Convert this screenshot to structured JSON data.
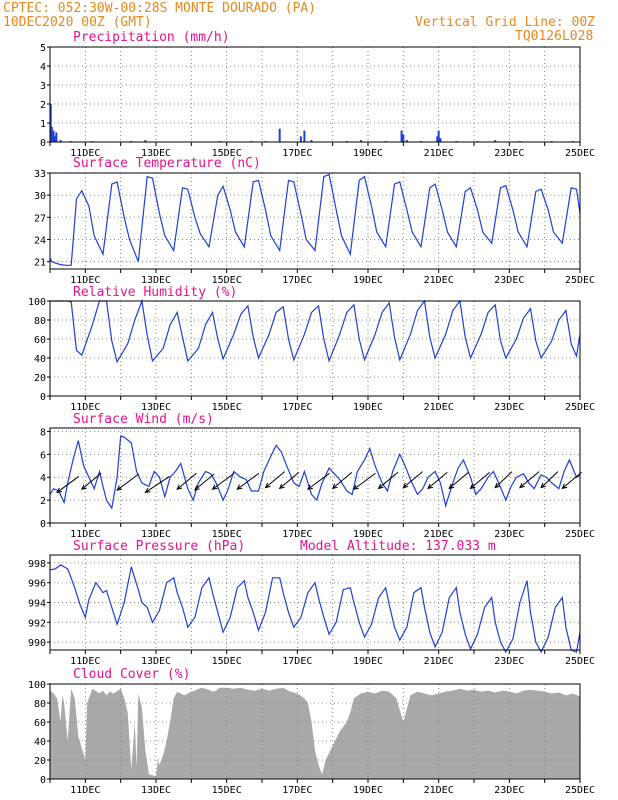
{
  "header": {
    "left_line1": "CPTEC:   052:30W-00:28S  MONTE DOURADO (PA)",
    "left_line2": "10DEC2020 00Z (GMT)",
    "right_line1": "Vertical Grid Line: 00Z",
    "right_line2": "TQ0126L028"
  },
  "colors": {
    "header": "#e8891e",
    "title": "#e5138c",
    "series": "#1f3fd8",
    "cloud": "#a9a9a9",
    "wind_arrow": "#000000",
    "grid": "#888888"
  },
  "chart_data": [
    {
      "id": "precip",
      "type": "bar",
      "title": "Precipitation (mm/h)",
      "xlabels": [
        "11DEC",
        "13DEC",
        "15DEC",
        "17DEC",
        "19DEC",
        "21DEC",
        "23DEC",
        "25DEC"
      ],
      "yticks": [
        0,
        1,
        2,
        3,
        4,
        5
      ],
      "ylim": [
        0,
        5
      ],
      "grid": true,
      "days_span": [
        10,
        25
      ],
      "bars": [
        {
          "x": 10.02,
          "y": 2.0
        },
        {
          "x": 10.05,
          "y": 0.8
        },
        {
          "x": 10.1,
          "y": 0.6
        },
        {
          "x": 10.14,
          "y": 0.3
        },
        {
          "x": 10.18,
          "y": 0.5
        },
        {
          "x": 10.3,
          "y": 0.1
        },
        {
          "x": 10.6,
          "y": 0.05
        },
        {
          "x": 11.2,
          "y": 0.05
        },
        {
          "x": 12.3,
          "y": 0.05
        },
        {
          "x": 12.7,
          "y": 0.1
        },
        {
          "x": 14.8,
          "y": 0.05
        },
        {
          "x": 15.7,
          "y": 0.05
        },
        {
          "x": 16.1,
          "y": 0.05
        },
        {
          "x": 16.5,
          "y": 0.7
        },
        {
          "x": 17.1,
          "y": 0.3
        },
        {
          "x": 17.2,
          "y": 0.6
        },
        {
          "x": 17.4,
          "y": 0.1
        },
        {
          "x": 18.4,
          "y": 0.05
        },
        {
          "x": 18.8,
          "y": 0.1
        },
        {
          "x": 19.5,
          "y": 0.05
        },
        {
          "x": 19.95,
          "y": 0.6
        },
        {
          "x": 20.0,
          "y": 0.4
        },
        {
          "x": 20.1,
          "y": 0.1
        },
        {
          "x": 20.5,
          "y": 0.05
        },
        {
          "x": 20.96,
          "y": 0.3
        },
        {
          "x": 21.0,
          "y": 0.6
        },
        {
          "x": 21.05,
          "y": 0.2
        },
        {
          "x": 21.5,
          "y": 0.05
        },
        {
          "x": 22.1,
          "y": 0.05
        },
        {
          "x": 22.6,
          "y": 0.1
        },
        {
          "x": 23.3,
          "y": 0.05
        },
        {
          "x": 24.2,
          "y": 0.05
        },
        {
          "x": 24.8,
          "y": 0.05
        }
      ]
    },
    {
      "id": "temp",
      "type": "line",
      "title": "Surface Temperature (nC)",
      "xlabels": [
        "11DEC",
        "13DEC",
        "15DEC",
        "17DEC",
        "19DEC",
        "21DEC",
        "23DEC",
        "25DEC"
      ],
      "yticks": [
        21,
        24,
        27,
        30,
        33
      ],
      "ylim": [
        20,
        33
      ],
      "grid": true,
      "days_span": [
        10,
        25
      ],
      "x": [
        10.0,
        10.05,
        10.15,
        10.3,
        10.45,
        10.6,
        10.75,
        10.9,
        11.1,
        11.25,
        11.5,
        11.75,
        11.9,
        12.1,
        12.25,
        12.5,
        12.75,
        12.9,
        13.1,
        13.25,
        13.5,
        13.75,
        13.9,
        14.1,
        14.25,
        14.5,
        14.75,
        14.9,
        15.1,
        15.25,
        15.5,
        15.75,
        15.9,
        16.1,
        16.25,
        16.5,
        16.75,
        16.9,
        17.1,
        17.25,
        17.5,
        17.75,
        17.9,
        18.1,
        18.25,
        18.5,
        18.75,
        18.9,
        19.1,
        19.25,
        19.5,
        19.75,
        19.9,
        20.1,
        20.25,
        20.5,
        20.75,
        20.9,
        21.1,
        21.25,
        21.5,
        21.75,
        21.9,
        22.1,
        22.25,
        22.5,
        22.75,
        22.9,
        23.1,
        23.25,
        23.5,
        23.75,
        23.9,
        24.1,
        24.25,
        24.5,
        24.75,
        24.9,
        25.0
      ],
      "values": [
        21.5,
        21.0,
        20.8,
        20.6,
        20.5,
        20.5,
        29.5,
        30.6,
        28.5,
        24.5,
        22.0,
        31.5,
        31.8,
        27.0,
        24.0,
        21.0,
        32.5,
        32.3,
        27.5,
        24.5,
        22.5,
        31.0,
        30.8,
        27.0,
        24.8,
        23.0,
        30.0,
        31.2,
        28.0,
        25.0,
        23.0,
        31.8,
        32.0,
        28.0,
        24.5,
        22.5,
        32.0,
        31.8,
        27.5,
        24.0,
        22.5,
        32.5,
        32.8,
        28.0,
        24.5,
        22.0,
        32.0,
        32.5,
        28.5,
        25.0,
        23.0,
        31.5,
        31.8,
        28.0,
        25.0,
        23.0,
        31.0,
        31.5,
        28.0,
        25.0,
        23.0,
        30.5,
        31.0,
        28.0,
        25.0,
        23.5,
        31.0,
        31.3,
        28.0,
        25.0,
        23.0,
        30.5,
        30.8,
        28.0,
        25.0,
        23.5,
        31.0,
        30.8,
        27.5
      ]
    },
    {
      "id": "rh",
      "type": "line",
      "title": "Relative Humidity (%)",
      "xlabels": [
        "11DEC",
        "13DEC",
        "15DEC",
        "17DEC",
        "19DEC",
        "21DEC",
        "23DEC",
        "25DEC"
      ],
      "yticks": [
        0,
        20,
        40,
        60,
        80,
        100
      ],
      "ylim": [
        0,
        100
      ],
      "grid": true,
      "days_span": [
        10,
        25
      ],
      "x": [
        10.0,
        10.15,
        10.3,
        10.5,
        10.6,
        10.75,
        10.9,
        11.2,
        11.4,
        11.6,
        11.75,
        11.9,
        12.2,
        12.4,
        12.6,
        12.75,
        12.9,
        13.2,
        13.4,
        13.6,
        13.75,
        13.9,
        14.2,
        14.4,
        14.6,
        14.75,
        14.9,
        15.2,
        15.4,
        15.6,
        15.75,
        15.9,
        16.2,
        16.4,
        16.6,
        16.75,
        16.9,
        17.2,
        17.4,
        17.6,
        17.75,
        17.9,
        18.2,
        18.4,
        18.6,
        18.75,
        18.9,
        19.2,
        19.4,
        19.6,
        19.75,
        19.9,
        20.2,
        20.4,
        20.6,
        20.75,
        20.9,
        21.2,
        21.4,
        21.6,
        21.75,
        21.9,
        22.2,
        22.4,
        22.6,
        22.75,
        22.9,
        23.2,
        23.4,
        23.6,
        23.75,
        23.9,
        24.2,
        24.4,
        24.6,
        24.75,
        24.9,
        25.0
      ],
      "values": [
        100,
        100,
        100,
        100,
        99,
        48,
        43,
        75,
        100,
        100,
        58,
        36,
        55,
        80,
        100,
        64,
        37,
        50,
        75,
        88,
        62,
        37,
        50,
        75,
        88,
        60,
        39,
        65,
        86,
        95,
        62,
        40,
        65,
        88,
        94,
        60,
        38,
        65,
        88,
        95,
        60,
        37,
        65,
        88,
        96,
        60,
        38,
        65,
        88,
        98,
        62,
        38,
        65,
        90,
        100,
        62,
        40,
        65,
        90,
        100,
        62,
        40,
        65,
        88,
        96,
        58,
        40,
        60,
        82,
        92,
        58,
        40,
        58,
        80,
        90,
        55,
        42,
        65
      ]
    },
    {
      "id": "wind",
      "type": "line",
      "title": "Surface Wind (m/s)",
      "xlabels": [
        "11DEC",
        "13DEC",
        "15DEC",
        "17DEC",
        "19DEC",
        "21DEC",
        "23DEC",
        "25DEC"
      ],
      "yticks": [
        0,
        2,
        4,
        6,
        8
      ],
      "ylim": [
        0,
        8.3
      ],
      "grid": true,
      "days_span": [
        10,
        25
      ],
      "x": [
        10.0,
        10.1,
        10.25,
        10.4,
        10.5,
        10.65,
        10.8,
        10.95,
        11.1,
        11.25,
        11.4,
        11.5,
        11.6,
        11.75,
        11.9,
        12.0,
        12.1,
        12.3,
        12.45,
        12.6,
        12.8,
        12.95,
        13.1,
        13.25,
        13.4,
        13.55,
        13.7,
        13.9,
        14.05,
        14.2,
        14.4,
        14.55,
        14.7,
        14.9,
        15.05,
        15.2,
        15.4,
        15.55,
        15.7,
        15.9,
        16.05,
        16.2,
        16.4,
        16.55,
        16.7,
        16.9,
        17.05,
        17.2,
        17.4,
        17.55,
        17.7,
        17.9,
        18.05,
        18.2,
        18.4,
        18.55,
        18.7,
        18.9,
        19.05,
        19.2,
        19.4,
        19.55,
        19.7,
        19.9,
        20.05,
        20.2,
        20.4,
        20.55,
        20.7,
        20.9,
        21.05,
        21.2,
        21.4,
        21.55,
        21.7,
        21.9,
        22.05,
        22.2,
        22.4,
        22.55,
        22.7,
        22.9,
        23.05,
        23.2,
        23.4,
        23.55,
        23.7,
        23.9,
        24.05,
        24.2,
        24.4,
        24.55,
        24.7,
        24.9,
        25.0
      ],
      "values": [
        2.5,
        3.0,
        2.8,
        1.8,
        3.5,
        5.5,
        7.2,
        5.0,
        4.0,
        3.0,
        4.5,
        3.2,
        2.0,
        1.3,
        4.0,
        7.6,
        7.5,
        7.0,
        4.5,
        3.5,
        3.2,
        4.5,
        4.0,
        2.3,
        4.0,
        4.5,
        5.2,
        3.0,
        2.0,
        3.5,
        4.5,
        4.3,
        3.5,
        2.0,
        3.0,
        4.5,
        4.0,
        3.8,
        2.8,
        2.8,
        4.5,
        5.5,
        6.8,
        6.2,
        5.0,
        3.5,
        3.2,
        4.5,
        2.5,
        2.0,
        3.5,
        4.8,
        4.3,
        3.8,
        2.8,
        2.5,
        4.5,
        5.5,
        6.5,
        5.0,
        3.5,
        2.8,
        4.5,
        6.0,
        5.0,
        3.8,
        2.5,
        3.0,
        4.0,
        4.5,
        3.5,
        1.5,
        3.5,
        4.8,
        5.5,
        4.0,
        2.5,
        3.0,
        4.0,
        4.5,
        3.5,
        2.0,
        3.2,
        4.0,
        4.3,
        3.5,
        3.0,
        4.2,
        4.0,
        3.5,
        3.0,
        4.5,
        5.5,
        4.0,
        4.2
      ],
      "arrows": [
        {
          "x": 10.2,
          "dx": 0.9,
          "dy": -0.9
        },
        {
          "x": 10.9,
          "dx": 0.8,
          "dy": -0.5
        },
        {
          "x": 11.9,
          "dx": 0.9,
          "dy": -0.6
        },
        {
          "x": 12.7,
          "dx": 1.0,
          "dy": -0.9
        },
        {
          "x": 13.6,
          "dx": 0.8,
          "dy": -0.5
        },
        {
          "x": 14.1,
          "dx": 0.8,
          "dy": -0.6
        },
        {
          "x": 14.6,
          "dx": 0.9,
          "dy": -0.5
        },
        {
          "x": 15.3,
          "dx": 0.9,
          "dy": -0.5
        },
        {
          "x": 16.1,
          "dx": 0.8,
          "dy": -0.3
        },
        {
          "x": 16.5,
          "dx": 0.8,
          "dy": -0.4
        },
        {
          "x": 17.3,
          "dx": 0.9,
          "dy": -0.5
        },
        {
          "x": 18.0,
          "dx": 0.8,
          "dy": -0.4
        },
        {
          "x": 18.6,
          "dx": 0.9,
          "dy": -0.5
        },
        {
          "x": 19.3,
          "dx": 0.8,
          "dy": -0.4
        },
        {
          "x": 20.0,
          "dx": 0.8,
          "dy": -0.3
        },
        {
          "x": 20.7,
          "dx": 0.8,
          "dy": -0.4
        },
        {
          "x": 21.3,
          "dx": 0.8,
          "dy": -0.4
        },
        {
          "x": 21.9,
          "dx": 0.8,
          "dy": -0.4
        },
        {
          "x": 22.6,
          "dx": 0.7,
          "dy": -0.3
        },
        {
          "x": 23.3,
          "dx": 0.8,
          "dy": -0.3
        },
        {
          "x": 23.9,
          "dx": 0.7,
          "dy": -0.3
        },
        {
          "x": 24.5,
          "dx": 0.8,
          "dy": -0.4
        }
      ]
    },
    {
      "id": "pres",
      "type": "line",
      "title": "Surface Pressure (hPa)",
      "subtitle": "Model Altitude: 137.033 m",
      "xlabels": [
        "11DEC",
        "13DEC",
        "15DEC",
        "17DEC",
        "19DEC",
        "21DEC",
        "23DEC",
        "25DEC"
      ],
      "yticks": [
        990,
        992,
        994,
        996,
        998
      ],
      "ylim": [
        989.2,
        998.8
      ],
      "grid": true,
      "days_span": [
        10,
        25
      ],
      "x": [
        10.0,
        10.15,
        10.3,
        10.5,
        10.7,
        10.85,
        11.0,
        11.1,
        11.3,
        11.5,
        11.6,
        11.75,
        11.9,
        12.1,
        12.3,
        12.5,
        12.6,
        12.75,
        12.9,
        13.1,
        13.3,
        13.5,
        13.6,
        13.75,
        13.9,
        14.1,
        14.3,
        14.5,
        14.6,
        14.75,
        14.9,
        15.1,
        15.3,
        15.5,
        15.6,
        15.75,
        15.9,
        16.1,
        16.3,
        16.5,
        16.6,
        16.75,
        16.9,
        17.1,
        17.3,
        17.5,
        17.6,
        17.75,
        17.9,
        18.1,
        18.3,
        18.5,
        18.6,
        18.75,
        18.9,
        19.1,
        19.3,
        19.5,
        19.6,
        19.75,
        19.9,
        20.1,
        20.3,
        20.5,
        20.6,
        20.75,
        20.9,
        21.1,
        21.3,
        21.5,
        21.6,
        21.75,
        21.9,
        22.1,
        22.3,
        22.5,
        22.6,
        22.75,
        22.9,
        23.1,
        23.3,
        23.5,
        23.6,
        23.75,
        23.9,
        24.1,
        24.3,
        24.5,
        24.6,
        24.75,
        24.9,
        25.0
      ],
      "values": [
        997.3,
        997.4,
        997.8,
        997.4,
        995.5,
        993.8,
        992.5,
        994.3,
        996.0,
        995.0,
        995.2,
        993.5,
        991.8,
        994.0,
        997.6,
        995.3,
        994.0,
        993.5,
        992.0,
        993.2,
        996.0,
        996.5,
        995.0,
        993.5,
        991.5,
        992.5,
        995.5,
        996.5,
        995.0,
        993.0,
        991.0,
        992.5,
        995.5,
        996.2,
        994.5,
        993.0,
        991.2,
        993.0,
        996.5,
        996.5,
        995.0,
        993.0,
        991.5,
        992.5,
        995.0,
        996.0,
        994.5,
        992.5,
        990.8,
        992.0,
        995.3,
        995.5,
        994.0,
        992.0,
        990.5,
        991.8,
        994.5,
        995.5,
        993.8,
        991.5,
        990.2,
        991.5,
        995.0,
        995.5,
        993.5,
        991.0,
        989.5,
        991.0,
        994.5,
        995.5,
        993.0,
        990.8,
        989.3,
        990.8,
        993.5,
        994.5,
        992.0,
        990.0,
        989.0,
        990.3,
        994.0,
        996.2,
        993.0,
        990.0,
        989.0,
        990.5,
        993.5,
        994.5,
        991.5,
        989.2,
        989.0,
        991.0
      ]
    },
    {
      "id": "cloud",
      "type": "area",
      "title": "Cloud Cover (%)",
      "xlabels": [
        "11DEC",
        "13DEC",
        "15DEC",
        "17DEC",
        "19DEC",
        "21DEC",
        "23DEC",
        "25DEC"
      ],
      "yticks": [
        0,
        20,
        40,
        60,
        80,
        100
      ],
      "ylim": [
        0,
        100
      ],
      "grid": true,
      "days_span": [
        10,
        25
      ],
      "x": [
        10.0,
        10.1,
        10.2,
        10.3,
        10.35,
        10.4,
        10.5,
        10.6,
        10.7,
        10.8,
        11.0,
        11.05,
        11.2,
        11.4,
        11.5,
        11.6,
        11.7,
        11.8,
        12.0,
        12.1,
        12.2,
        12.3,
        12.4,
        12.45,
        12.5,
        12.6,
        12.7,
        12.8,
        13.0,
        13.05,
        13.1,
        13.2,
        13.3,
        13.4,
        13.5,
        13.6,
        13.7,
        13.8,
        14.0,
        14.1,
        14.2,
        14.3,
        14.4,
        14.5,
        14.6,
        14.7,
        14.8,
        15.0,
        15.2,
        15.4,
        15.6,
        15.8,
        16.0,
        16.2,
        16.4,
        16.6,
        16.8,
        17.0,
        17.2,
        17.3,
        17.4,
        17.5,
        17.6,
        17.7,
        17.8,
        18.0,
        18.2,
        18.4,
        18.5,
        18.6,
        18.8,
        19.0,
        19.2,
        19.4,
        19.6,
        19.8,
        20.0,
        20.2,
        20.4,
        20.6,
        20.8,
        21.0,
        21.2,
        21.4,
        21.6,
        21.8,
        22.0,
        22.2,
        22.4,
        22.6,
        22.8,
        23.0,
        23.2,
        23.4,
        23.6,
        23.8,
        24.0,
        24.2,
        24.4,
        24.6,
        24.8,
        25.0
      ],
      "values": [
        93,
        90,
        85,
        60,
        88,
        80,
        40,
        95,
        85,
        45,
        20,
        80,
        95,
        90,
        93,
        88,
        92,
        90,
        95,
        85,
        70,
        10,
        60,
        12,
        90,
        75,
        30,
        5,
        3,
        20,
        15,
        25,
        40,
        60,
        85,
        92,
        90,
        88,
        92,
        93,
        95,
        96,
        95,
        94,
        92,
        93,
        96,
        96,
        95,
        96,
        94,
        93,
        95,
        93,
        95,
        96,
        92,
        90,
        85,
        80,
        60,
        30,
        15,
        5,
        20,
        35,
        50,
        60,
        70,
        85,
        90,
        92,
        90,
        93,
        92,
        85,
        60,
        88,
        92,
        90,
        88,
        90,
        92,
        93,
        95,
        93,
        94,
        92,
        93,
        91,
        93,
        92,
        90,
        93,
        94,
        93,
        92,
        90,
        91,
        88,
        90,
        87
      ]
    }
  ]
}
